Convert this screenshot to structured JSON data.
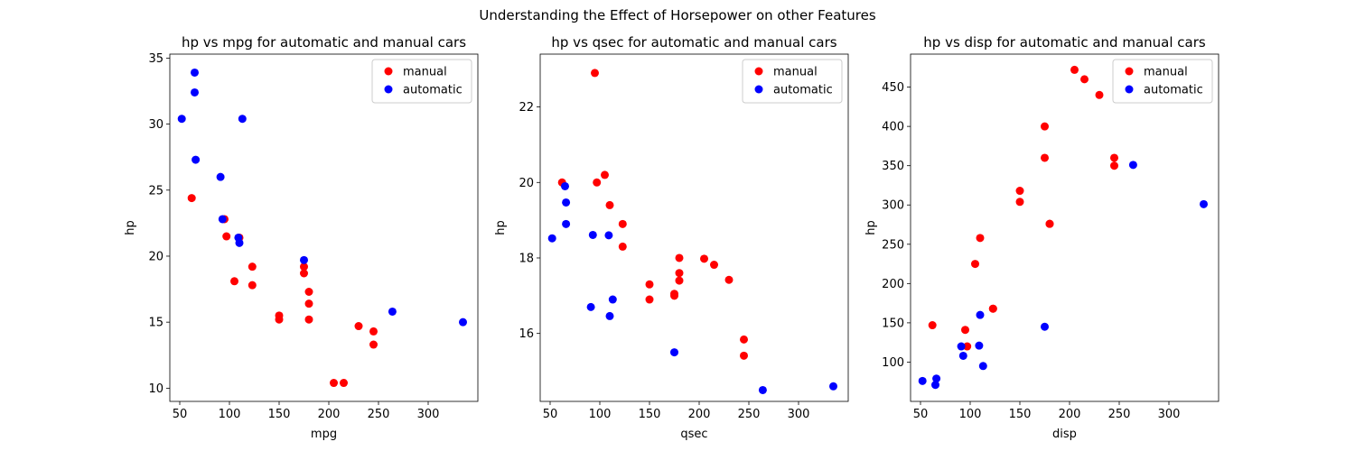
{
  "figure": {
    "title": "Understanding the Effect of Horsepower on other Features"
  },
  "chart_data": [
    {
      "type": "scatter",
      "title": "hp vs mpg for automatic and manual cars",
      "xlabel": "mpg",
      "ylabel": "hp",
      "xlim": [
        40,
        350
      ],
      "ylim": [
        9,
        35.3
      ],
      "xticks": [
        50,
        100,
        150,
        200,
        250,
        300
      ],
      "yticks": [
        10,
        15,
        20,
        25,
        30,
        35
      ],
      "legend": "top-right",
      "series": [
        {
          "name": "manual",
          "color": "#ff0000",
          "x": [
            62,
            95,
            97,
            105,
            110,
            123,
            123,
            150,
            150,
            175,
            175,
            180,
            180,
            180,
            205,
            215,
            230,
            245,
            245
          ],
          "y": [
            24.4,
            22.8,
            21.5,
            18.1,
            21.4,
            19.2,
            17.8,
            15.5,
            15.2,
            18.7,
            19.2,
            17.3,
            16.4,
            15.2,
            10.4,
            10.4,
            14.7,
            14.3,
            13.3
          ]
        },
        {
          "name": "automatic",
          "color": "#0000ff",
          "x": [
            52,
            65,
            65,
            66,
            91,
            93,
            109,
            110,
            113,
            175,
            264,
            335
          ],
          "y": [
            30.4,
            33.9,
            32.4,
            27.3,
            26.0,
            22.8,
            21.4,
            21.0,
            30.4,
            19.7,
            15.8,
            15.0
          ]
        }
      ]
    },
    {
      "type": "scatter",
      "title": "hp vs qsec for automatic and manual cars",
      "xlabel": "qsec",
      "ylabel": "hp",
      "xlim": [
        40,
        350
      ],
      "ylim": [
        14.2,
        23.4
      ],
      "xticks": [
        50,
        100,
        150,
        200,
        250,
        300
      ],
      "yticks": [
        16,
        18,
        20,
        22
      ],
      "legend": "top-right",
      "series": [
        {
          "name": "manual",
          "color": "#ff0000",
          "x": [
            62,
            95,
            97,
            105,
            110,
            123,
            123,
            150,
            150,
            175,
            175,
            180,
            180,
            180,
            205,
            215,
            230,
            245,
            245
          ],
          "y": [
            20.0,
            22.9,
            20.0,
            20.2,
            19.4,
            18.3,
            18.9,
            17.3,
            16.9,
            17.0,
            17.05,
            17.4,
            17.6,
            18.0,
            17.98,
            17.82,
            17.42,
            15.41,
            15.84
          ]
        },
        {
          "name": "automatic",
          "color": "#0000ff",
          "x": [
            52,
            65,
            66,
            66,
            91,
            93,
            109,
            110,
            113,
            175,
            264,
            335
          ],
          "y": [
            18.52,
            19.9,
            19.47,
            18.9,
            16.7,
            18.61,
            18.6,
            16.46,
            16.9,
            15.5,
            14.5,
            14.6
          ]
        }
      ]
    },
    {
      "type": "scatter",
      "title": "hp vs disp for automatic and manual cars",
      "xlabel": "disp",
      "ylabel": "hp",
      "xlim": [
        40,
        350
      ],
      "ylim": [
        50,
        492
      ],
      "xticks": [
        50,
        100,
        150,
        200,
        250,
        300
      ],
      "yticks": [
        100,
        150,
        200,
        250,
        300,
        350,
        400,
        450
      ],
      "legend": "top-right",
      "series": [
        {
          "name": "manual",
          "color": "#ff0000",
          "x": [
            62,
            95,
            97,
            105,
            110,
            123,
            123,
            150,
            150,
            175,
            175,
            180,
            180,
            205,
            215,
            230,
            245,
            245
          ],
          "y": [
            147,
            141,
            120,
            225,
            258,
            168,
            168,
            318,
            304,
            400,
            360,
            276,
            276,
            472,
            460,
            440,
            350,
            360
          ]
        },
        {
          "name": "automatic",
          "color": "#0000ff",
          "x": [
            52,
            65,
            66,
            91,
            93,
            109,
            110,
            113,
            175,
            264,
            335
          ],
          "y": [
            76,
            71,
            79,
            120,
            108,
            121,
            160,
            95,
            145,
            351,
            301
          ]
        }
      ]
    }
  ]
}
